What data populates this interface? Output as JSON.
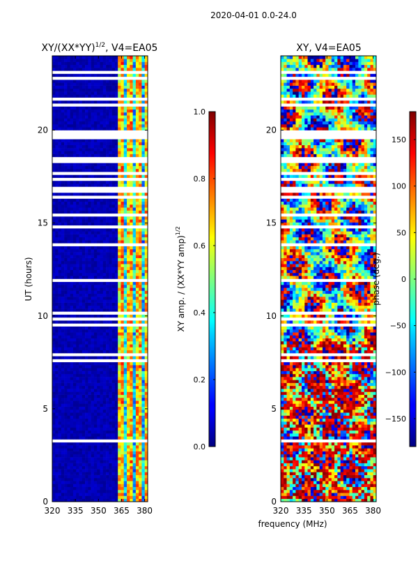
{
  "chart_data": [
    {
      "type": "heatmap",
      "title": "XY/(XX*YY)^{1/2}, V4=EA05",
      "title_main": "XY/(XX*YY)",
      "title_sup": "1/2",
      "title_tail": ", V4=EA05",
      "xlabel": "",
      "ylabel": "UT (hours)",
      "xlim": [
        320,
        382
      ],
      "ylim": [
        0,
        24
      ],
      "xticks": [
        "320",
        "335",
        "350",
        "365",
        "380"
      ],
      "yticks": [
        "0",
        "5",
        "10",
        "15",
        "20"
      ],
      "colorbar": {
        "label": "XY amp. / (XX*YY amp)^{1/2}",
        "label_main": "XY amp. / (XX*YY amp)",
        "label_sup": "1/2",
        "range": [
          0.0,
          1.0
        ],
        "ticks": [
          "0.0",
          "0.2",
          "0.4",
          "0.6",
          "0.8",
          "1.0"
        ],
        "colormap": "jet"
      }
    },
    {
      "type": "heatmap",
      "title": "XY, V4=EA05",
      "xlabel": "frequency (MHz)",
      "ylabel": "",
      "xlim": [
        320,
        382
      ],
      "ylim": [
        0,
        24
      ],
      "xticks": [
        "320",
        "335",
        "350",
        "365",
        "380"
      ],
      "yticks": [
        "0",
        "5",
        "10",
        "15",
        "20"
      ],
      "colorbar": {
        "label": "phase (deg.)",
        "range": [
          -180,
          180
        ],
        "ticks": [
          "-150",
          "-100",
          "-50",
          "0",
          "50",
          "100",
          "150"
        ],
        "colormap": "jet"
      }
    }
  ],
  "figure": {
    "suptitle": "2020-04-01 0.0-24.0"
  }
}
